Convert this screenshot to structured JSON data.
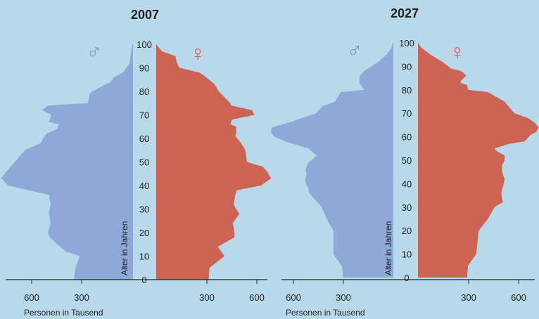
{
  "colors": {
    "background": "#b7d9ea",
    "male": "#8ea8d7",
    "female": "#cc6453",
    "axis": "#222222",
    "text": "#222222"
  },
  "chart_data": [
    {
      "type": "population-pyramid",
      "title": "2007",
      "ylabel": "Alter in Jahren",
      "xlabel": "Personen in Tausend",
      "ylim": [
        0,
        100
      ],
      "y_ticks": [
        "0",
        "10",
        "20",
        "30",
        "40",
        "50",
        "60",
        "70",
        "80",
        "90",
        "100"
      ],
      "x_ticks_left": [
        "600",
        "300"
      ],
      "x_ticks_right": [
        "300",
        "600"
      ],
      "male_symbol": "♂",
      "female_symbol": "♀",
      "male": [
        [
          0,
          355
        ],
        [
          5,
          345
        ],
        [
          10,
          320
        ],
        [
          12,
          405
        ],
        [
          18,
          500
        ],
        [
          20,
          510
        ],
        [
          24,
          495
        ],
        [
          28,
          505
        ],
        [
          32,
          495
        ],
        [
          36,
          505
        ],
        [
          40,
          750
        ],
        [
          43,
          790
        ],
        [
          46,
          760
        ],
        [
          50,
          710
        ],
        [
          55,
          650
        ],
        [
          58,
          555
        ],
        [
          60,
          540
        ],
        [
          62,
          520
        ],
        [
          64,
          455
        ],
        [
          66,
          445
        ],
        [
          67,
          505
        ],
        [
          70,
          490
        ],
        [
          72,
          545
        ],
        [
          74,
          510
        ],
        [
          75,
          270
        ],
        [
          79,
          260
        ],
        [
          80,
          245
        ],
        [
          84,
          135
        ],
        [
          86,
          115
        ],
        [
          88,
          60
        ],
        [
          90,
          40
        ],
        [
          92,
          20
        ],
        [
          95,
          15
        ],
        [
          100,
          5
        ]
      ],
      "female": [
        [
          0,
          315
        ],
        [
          5,
          320
        ],
        [
          10,
          410
        ],
        [
          14,
          370
        ],
        [
          18,
          470
        ],
        [
          20,
          470
        ],
        [
          24,
          460
        ],
        [
          28,
          500
        ],
        [
          30,
          480
        ],
        [
          32,
          465
        ],
        [
          36,
          475
        ],
        [
          38,
          485
        ],
        [
          40,
          630
        ],
        [
          43,
          690
        ],
        [
          46,
          665
        ],
        [
          48,
          640
        ],
        [
          50,
          545
        ],
        [
          55,
          535
        ],
        [
          58,
          510
        ],
        [
          61,
          475
        ],
        [
          62,
          480
        ],
        [
          65,
          480
        ],
        [
          66,
          445
        ],
        [
          68,
          455
        ],
        [
          70,
          590
        ],
        [
          72,
          575
        ],
        [
          74,
          450
        ],
        [
          75,
          445
        ],
        [
          80,
          375
        ],
        [
          83,
          350
        ],
        [
          86,
          300
        ],
        [
          88,
          260
        ],
        [
          90,
          140
        ],
        [
          92,
          125
        ],
        [
          95,
          115
        ],
        [
          97,
          35
        ],
        [
          100,
          0
        ]
      ],
      "male_x_range": [
        0,
        1000
      ],
      "female_x_range": [
        0,
        1000
      ]
    },
    {
      "type": "population-pyramid",
      "title": "2027",
      "ylabel": "Alter in Jahren",
      "xlabel": "Personen in Tausend",
      "ylim": [
        0,
        100
      ],
      "y_ticks": [
        "0",
        "10",
        "20",
        "30",
        "40",
        "50",
        "60",
        "70",
        "80",
        "90",
        "100"
      ],
      "x_ticks_left": [
        "600",
        "300"
      ],
      "x_ticks_right": [
        "300",
        "600"
      ],
      "male_symbol": "♂",
      "female_symbol": "♀",
      "male": [
        [
          0,
          300
        ],
        [
          5,
          310
        ],
        [
          10,
          360
        ],
        [
          20,
          360
        ],
        [
          25,
          400
        ],
        [
          30,
          430
        ],
        [
          34,
          480
        ],
        [
          36,
          505
        ],
        [
          38,
          510
        ],
        [
          40,
          525
        ],
        [
          42,
          530
        ],
        [
          44,
          520
        ],
        [
          46,
          530
        ],
        [
          49,
          510
        ],
        [
          50,
          490
        ],
        [
          52,
          460
        ],
        [
          55,
          510
        ],
        [
          58,
          650
        ],
        [
          60,
          715
        ],
        [
          62,
          735
        ],
        [
          64,
          730
        ],
        [
          66,
          630
        ],
        [
          70,
          465
        ],
        [
          73,
          425
        ],
        [
          75,
          350
        ],
        [
          79,
          315
        ],
        [
          80,
          175
        ],
        [
          83,
          205
        ],
        [
          84,
          205
        ],
        [
          86,
          200
        ],
        [
          88,
          175
        ],
        [
          90,
          130
        ],
        [
          92,
          90
        ],
        [
          95,
          40
        ],
        [
          98,
          10
        ],
        [
          100,
          5
        ]
      ],
      "female": [
        [
          0,
          295
        ],
        [
          5,
          300
        ],
        [
          10,
          350
        ],
        [
          20,
          365
        ],
        [
          25,
          420
        ],
        [
          30,
          460
        ],
        [
          31,
          480
        ],
        [
          32,
          510
        ],
        [
          36,
          500
        ],
        [
          40,
          515
        ],
        [
          42,
          520
        ],
        [
          45,
          505
        ],
        [
          48,
          505
        ],
        [
          50,
          520
        ],
        [
          52,
          520
        ],
        [
          54,
          470
        ],
        [
          55,
          460
        ],
        [
          57,
          550
        ],
        [
          58,
          640
        ],
        [
          61,
          680
        ],
        [
          62,
          710
        ],
        [
          64,
          725
        ],
        [
          66,
          700
        ],
        [
          68,
          660
        ],
        [
          70,
          580
        ],
        [
          72,
          555
        ],
        [
          75,
          520
        ],
        [
          79,
          420
        ],
        [
          80,
          300
        ],
        [
          82,
          295
        ],
        [
          83,
          255
        ],
        [
          84,
          260
        ],
        [
          86,
          290
        ],
        [
          88,
          260
        ],
        [
          89,
          200
        ],
        [
          92,
          145
        ],
        [
          95,
          75
        ],
        [
          98,
          20
        ],
        [
          100,
          0
        ]
      ],
      "male_x_range": [
        0,
        1000
      ],
      "female_x_range": [
        0,
        1000
      ]
    }
  ]
}
